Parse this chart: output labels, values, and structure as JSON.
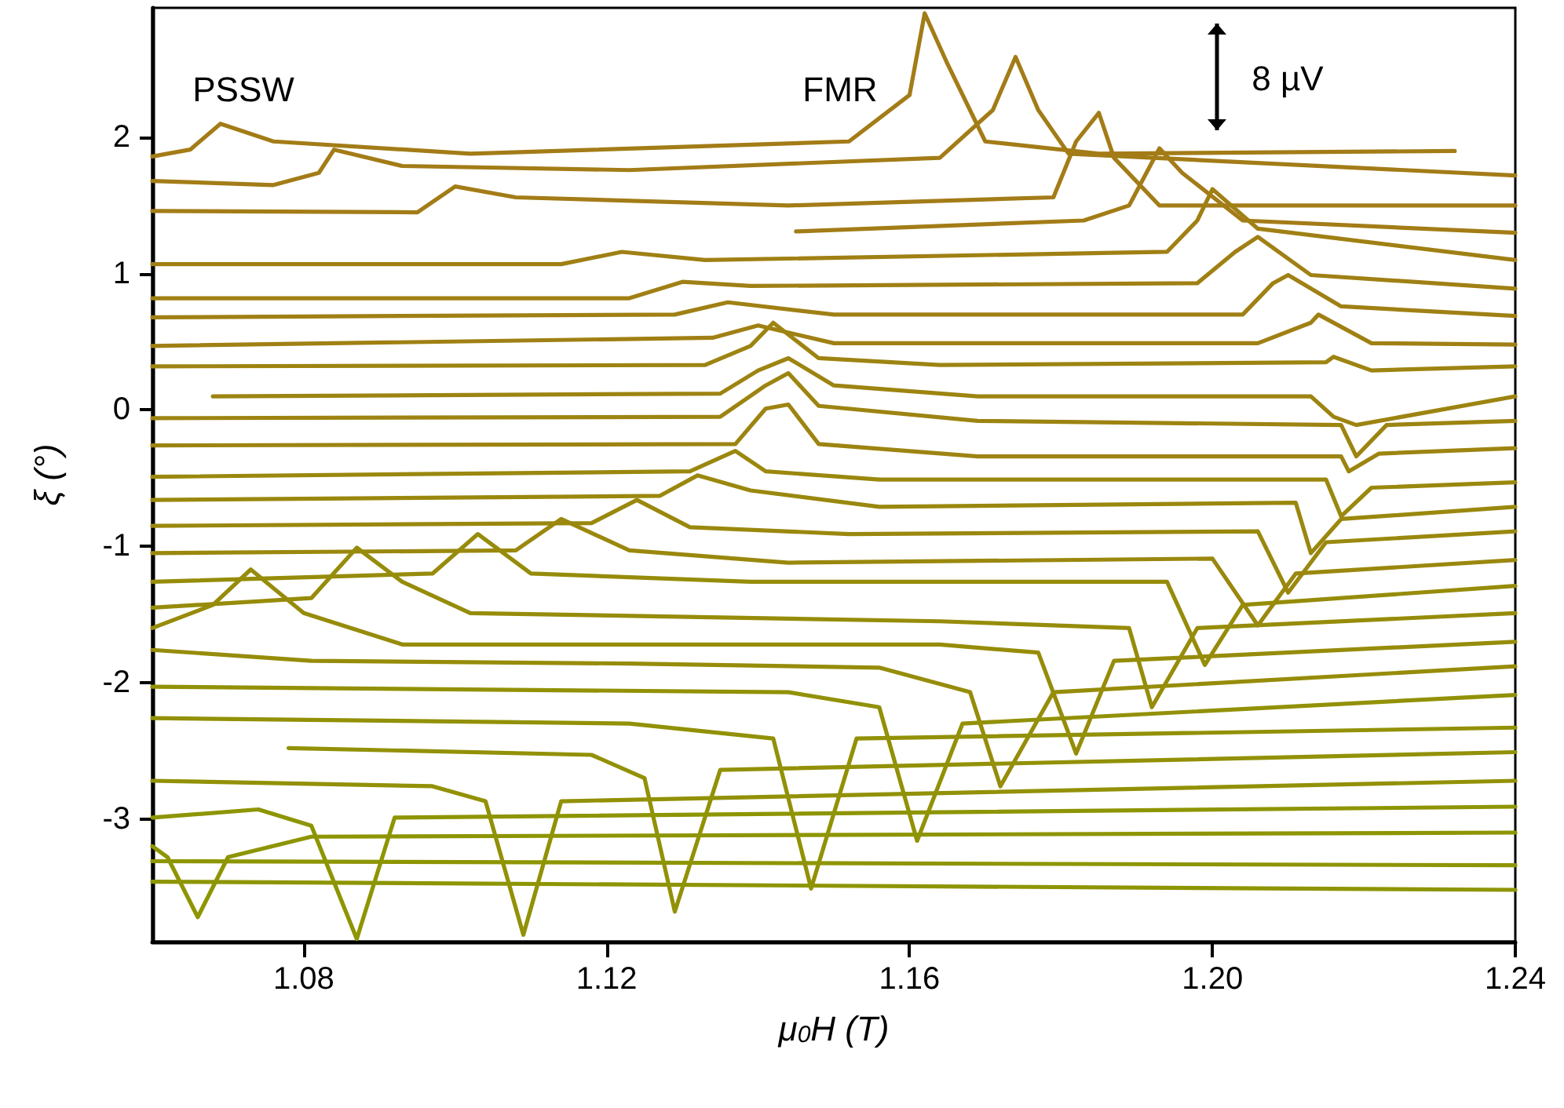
{
  "chart_data": {
    "type": "line",
    "xlabel": "μ$_{0}$H (T)",
    "ylabel": "ξ (°)",
    "xlim": [
      1.06,
      1.24
    ],
    "ylim": [
      -3.9,
      2.95
    ],
    "xticks": [
      {
        "value": 1.08,
        "label": "1.08"
      },
      {
        "value": 1.12,
        "label": "1.12"
      },
      {
        "value": 1.16,
        "label": "1.16"
      },
      {
        "value": 1.2,
        "label": "1.20"
      },
      {
        "value": 1.24,
        "label": "1.24"
      }
    ],
    "yticks": [
      -3,
      -2,
      -1,
      0,
      1,
      2
    ],
    "grid": false,
    "marker": "none",
    "line_style": "solid",
    "annotations": [
      "PSSW",
      "FMR",
      "8 µV"
    ],
    "series": [
      {
        "color": "#a37c17",
        "x": [
          1.06,
          1.065,
          1.069,
          1.076,
          1.102,
          1.152,
          1.16,
          1.162,
          1.165,
          1.17,
          1.185,
          1.232
        ],
        "values": [
          1.86,
          1.91,
          2.1,
          1.97,
          1.88,
          1.97,
          2.31,
          2.91,
          2.54,
          1.97,
          1.88,
          1.9
        ]
      },
      {
        "color": "#a37c17",
        "x": [
          1.06,
          1.076,
          1.082,
          1.084,
          1.093,
          1.123,
          1.164,
          1.171,
          1.174,
          1.177,
          1.181,
          1.24
        ],
        "values": [
          1.68,
          1.65,
          1.74,
          1.91,
          1.79,
          1.76,
          1.85,
          2.2,
          2.59,
          2.2,
          1.88,
          1.72
        ]
      },
      {
        "color": "#a37c17",
        "x": [
          1.06,
          1.095,
          1.1,
          1.108,
          1.144,
          1.179,
          1.182,
          1.185,
          1.187,
          1.193,
          1.24
        ],
        "values": [
          1.46,
          1.45,
          1.64,
          1.56,
          1.5,
          1.56,
          1.97,
          2.18,
          1.85,
          1.5,
          1.5
        ]
      },
      {
        "color": "#a37c17",
        "x": [
          1.145,
          1.183,
          1.189,
          1.193,
          1.196,
          1.204,
          1.24
        ],
        "values": [
          1.31,
          1.39,
          1.5,
          1.92,
          1.74,
          1.39,
          1.3
        ]
      },
      {
        "color": "#a08014",
        "x": [
          1.06,
          1.114,
          1.122,
          1.133,
          1.194,
          1.198,
          1.2,
          1.206,
          1.24
        ],
        "values": [
          1.07,
          1.07,
          1.16,
          1.1,
          1.16,
          1.39,
          1.62,
          1.33,
          1.1
        ]
      },
      {
        "color": "#a08014",
        "x": [
          1.06,
          1.123,
          1.13,
          1.139,
          1.198,
          1.203,
          1.206,
          1.213,
          1.24
        ],
        "values": [
          0.82,
          0.82,
          0.94,
          0.91,
          0.93,
          1.16,
          1.27,
          0.99,
          0.89
        ]
      },
      {
        "color": "#a08014",
        "x": [
          1.06,
          1.129,
          1.136,
          1.15,
          1.204,
          1.208,
          1.21,
          1.217,
          1.24
        ],
        "values": [
          0.68,
          0.7,
          0.79,
          0.7,
          0.7,
          0.93,
          0.99,
          0.76,
          0.69
        ]
      },
      {
        "color": "#a08014",
        "x": [
          1.06,
          1.134,
          1.14,
          1.15,
          1.206,
          1.213,
          1.214,
          1.221,
          1.24
        ],
        "values": [
          0.47,
          0.53,
          0.62,
          0.49,
          0.49,
          0.64,
          0.7,
          0.49,
          0.48
        ]
      },
      {
        "color": "#9d8411",
        "x": [
          1.06,
          1.133,
          1.139,
          1.142,
          1.148,
          1.164,
          1.215,
          1.216,
          1.221,
          1.24
        ],
        "values": [
          0.32,
          0.33,
          0.47,
          0.64,
          0.38,
          0.33,
          0.35,
          0.39,
          0.29,
          0.32
        ]
      },
      {
        "color": "#9d8411",
        "x": [
          1.068,
          1.135,
          1.14,
          1.144,
          1.15,
          1.169,
          1.213,
          1.216,
          1.219,
          1.24
        ],
        "values": [
          0.1,
          0.12,
          0.29,
          0.38,
          0.18,
          0.1,
          0.1,
          -0.05,
          -0.11,
          0.1
        ]
      },
      {
        "color": "#9d8411",
        "x": [
          1.06,
          1.135,
          1.141,
          1.144,
          1.148,
          1.169,
          1.217,
          1.219,
          1.223,
          1.24
        ],
        "values": [
          -0.06,
          -0.05,
          0.18,
          0.27,
          0.03,
          -0.08,
          -0.11,
          -0.34,
          -0.11,
          -0.08
        ]
      },
      {
        "color": "#9d8411",
        "x": [
          1.06,
          1.137,
          1.141,
          1.144,
          1.148,
          1.169,
          1.217,
          1.218,
          1.222,
          1.24
        ],
        "values": [
          -0.26,
          -0.25,
          0.01,
          0.04,
          -0.25,
          -0.34,
          -0.34,
          -0.45,
          -0.32,
          -0.28
        ]
      },
      {
        "color": "#9a880e",
        "x": [
          1.06,
          1.131,
          1.137,
          1.141,
          1.156,
          1.215,
          1.217,
          1.221,
          1.24
        ],
        "values": [
          -0.49,
          -0.45,
          -0.3,
          -0.45,
          -0.51,
          -0.51,
          -0.78,
          -0.57,
          -0.53
        ]
      },
      {
        "color": "#9a880e",
        "x": [
          1.06,
          1.127,
          1.132,
          1.139,
          1.156,
          1.211,
          1.213,
          1.217,
          1.24
        ],
        "values": [
          -0.66,
          -0.63,
          -0.48,
          -0.59,
          -0.71,
          -0.68,
          -1.05,
          -0.8,
          -0.71
        ]
      },
      {
        "color": "#9a880e",
        "x": [
          1.06,
          1.118,
          1.124,
          1.131,
          1.152,
          1.206,
          1.21,
          1.215,
          1.24
        ],
        "values": [
          -0.85,
          -0.83,
          -0.66,
          -0.86,
          -0.91,
          -0.89,
          -1.34,
          -0.97,
          -0.89
        ]
      },
      {
        "color": "#9a880e",
        "x": [
          1.06,
          1.108,
          1.114,
          1.123,
          1.144,
          1.2,
          1.206,
          1.211,
          1.24
        ],
        "values": [
          -1.05,
          -1.03,
          -0.8,
          -1.03,
          -1.12,
          -1.09,
          -1.58,
          -1.2,
          -1.1
        ]
      },
      {
        "color": "#968c0a",
        "x": [
          1.06,
          1.097,
          1.103,
          1.11,
          1.139,
          1.194,
          1.199,
          1.204,
          1.24
        ],
        "values": [
          -1.26,
          -1.2,
          -0.91,
          -1.2,
          -1.26,
          -1.26,
          -1.87,
          -1.43,
          -1.29
        ]
      },
      {
        "color": "#968c0a",
        "x": [
          1.06,
          1.081,
          1.087,
          1.093,
          1.102,
          1.164,
          1.189,
          1.192,
          1.198,
          1.24
        ],
        "values": [
          -1.45,
          -1.38,
          -1.01,
          -1.26,
          -1.49,
          -1.55,
          -1.6,
          -2.18,
          -1.6,
          -1.49
        ]
      },
      {
        "color": "#968c0a",
        "x": [
          1.06,
          1.068,
          1.073,
          1.08,
          1.093,
          1.164,
          1.177,
          1.182,
          1.187,
          1.24
        ],
        "values": [
          -1.6,
          -1.43,
          -1.17,
          -1.49,
          -1.72,
          -1.72,
          -1.78,
          -2.52,
          -1.84,
          -1.7
        ]
      },
      {
        "color": "#968c0a",
        "x": [
          1.06,
          1.081,
          1.123,
          1.156,
          1.168,
          1.172,
          1.179,
          1.24
        ],
        "values": [
          -1.76,
          -1.84,
          -1.86,
          -1.89,
          -2.07,
          -2.76,
          -2.07,
          -1.88
        ]
      },
      {
        "color": "#929107",
        "x": [
          1.06,
          1.144,
          1.156,
          1.161,
          1.167,
          1.24
        ],
        "values": [
          -2.03,
          -2.07,
          -2.18,
          -3.16,
          -2.3,
          -2.09
        ]
      },
      {
        "color": "#929107",
        "x": [
          1.06,
          1.123,
          1.142,
          1.147,
          1.153,
          1.24
        ],
        "values": [
          -2.26,
          -2.3,
          -2.41,
          -3.51,
          -2.41,
          -2.33
        ]
      },
      {
        "color": "#929107",
        "x": [
          1.078,
          1.118,
          1.125,
          1.129,
          1.135,
          1.24
        ],
        "values": [
          -2.48,
          -2.53,
          -2.7,
          -3.68,
          -2.64,
          -2.51
        ]
      },
      {
        "color": "#929107",
        "x": [
          1.06,
          1.097,
          1.104,
          1.109,
          1.114,
          1.24
        ],
        "values": [
          -2.72,
          -2.76,
          -2.87,
          -3.85,
          -2.87,
          -2.72
        ]
      },
      {
        "color": "#8e9503",
        "x": [
          1.06,
          1.074,
          1.081,
          1.087,
          1.092,
          1.24
        ],
        "values": [
          -2.99,
          -2.93,
          -3.05,
          -3.88,
          -2.99,
          -2.91
        ]
      },
      {
        "color": "#8e9503",
        "x": [
          1.06,
          1.062,
          1.066,
          1.07,
          1.081,
          1.24
        ],
        "values": [
          -3.2,
          -3.28,
          -3.72,
          -3.28,
          -3.13,
          -3.1
        ]
      },
      {
        "color": "#8e9503",
        "x": [
          1.06,
          1.24
        ],
        "values": [
          -3.31,
          -3.34
        ]
      },
      {
        "color": "#8e9503",
        "x": [
          1.06,
          1.24
        ],
        "values": [
          -3.46,
          -3.52
        ]
      }
    ]
  }
}
